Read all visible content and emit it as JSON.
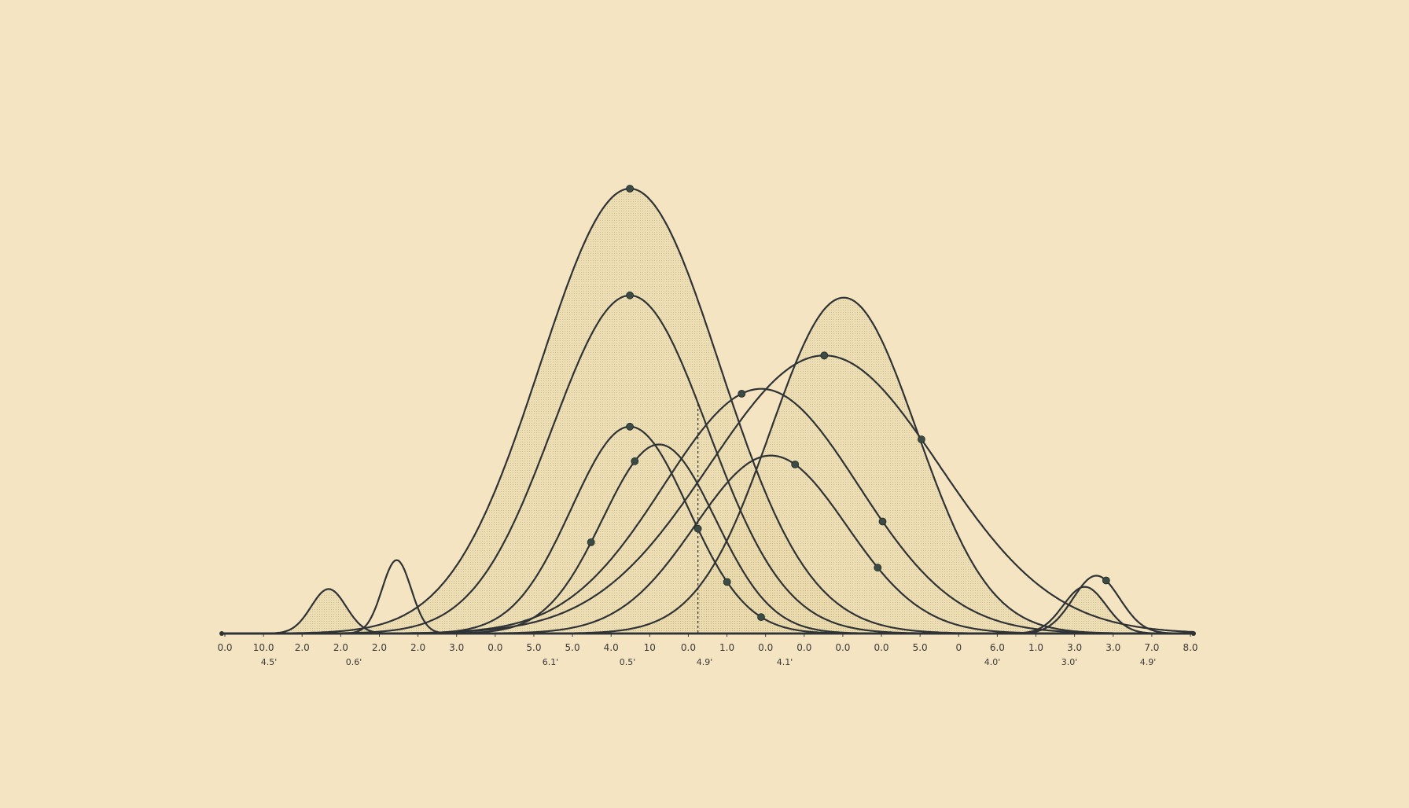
{
  "colors": {
    "background": "#f4e4c1",
    "curve": "#2f3336",
    "fill": "#e9d9a8",
    "marker": "#3c4b45"
  },
  "chart_data": {
    "type": "area",
    "title": "",
    "xlabel": "",
    "ylabel": "",
    "grid": false,
    "legend": "none",
    "xlim": [
      0,
      1000
    ],
    "ylim": [
      0,
      1.0
    ],
    "tick_labels": [
      "0.0",
      "10.0",
      "2.0",
      "2.0",
      "2.0",
      "2.0",
      "3.0",
      "0.0",
      "5.0",
      "5.0",
      "4.0",
      "10",
      "0.0",
      "1.0",
      "0.0",
      "0.0",
      "0.0",
      "0.0",
      "5.0",
      "0",
      "6.0",
      "1.0",
      "3.0",
      "3.0",
      "7.0",
      "8.0"
    ],
    "sub_labels": [
      "4.5'",
      "0.6'",
      "6.1'",
      "0.5'",
      "4.9'",
      "4.1'",
      "4.0'",
      "3.0'",
      "4.9'"
    ],
    "series": [
      {
        "mu": 420,
        "sigma": 92,
        "amp": 1.0,
        "fill": true,
        "markers": [
          420
        ]
      },
      {
        "mu": 420,
        "sigma": 80,
        "amp": 0.76,
        "fill": false,
        "markers": [
          420
        ]
      },
      {
        "mu": 420,
        "sigma": 60,
        "amp": 0.465,
        "fill": false,
        "markers": [
          420,
          490,
          520,
          555
        ]
      },
      {
        "mu": 450,
        "sigma": 58,
        "amp": 0.425,
        "fill": false,
        "markers": [
          380,
          425
        ]
      },
      {
        "mu": 640,
        "sigma": 75,
        "amp": 0.755,
        "fill": true,
        "markers": []
      },
      {
        "mu": 620,
        "sigma": 118,
        "amp": 0.625,
        "fill": false,
        "markers": [
          620,
          620,
          720
        ]
      },
      {
        "mu": 555,
        "sigma": 100,
        "amp": 0.55,
        "fill": false,
        "markers": [
          535,
          680
        ]
      },
      {
        "mu": 565,
        "sigma": 78,
        "amp": 0.4,
        "fill": false,
        "markers": [
          590,
          675
        ]
      },
      {
        "mu": 110,
        "sigma": 18,
        "amp": 0.1,
        "fill": true,
        "markers": []
      },
      {
        "mu": 180,
        "sigma": 15,
        "amp": 0.165,
        "fill": false,
        "markers": []
      },
      {
        "mu": 888,
        "sigma": 22,
        "amp": 0.105,
        "fill": true,
        "markers": []
      },
      {
        "mu": 900,
        "sigma": 24,
        "amp": 0.13,
        "fill": false,
        "markers": [
          910
        ]
      }
    ],
    "reference_line_x": 490
  }
}
